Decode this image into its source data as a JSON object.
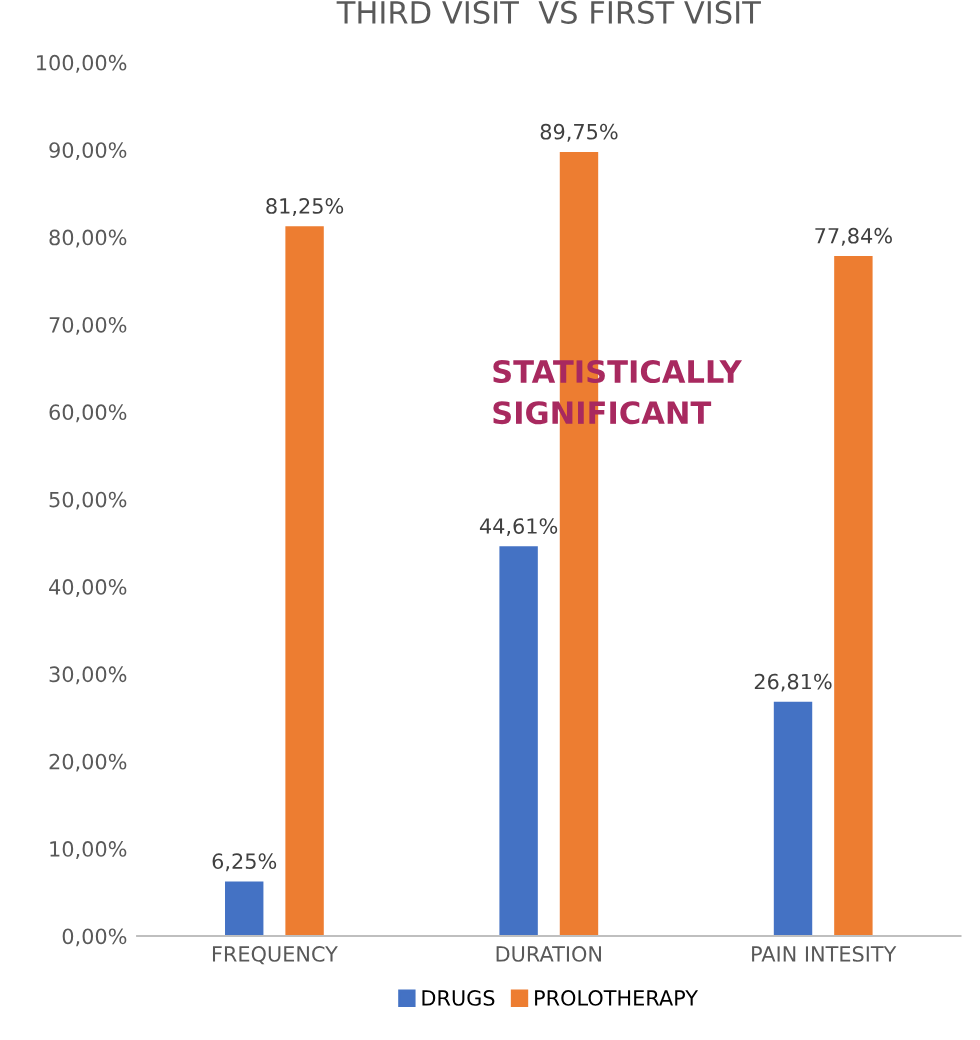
{
  "chart_data": {
    "type": "bar",
    "title": "THIRD VISIT  VS FIRST VISIT",
    "categories": [
      "FREQUENCY",
      "DURATION",
      "PAIN INTESITY"
    ],
    "series": [
      {
        "name": "DRUGS",
        "color": "#4472c4",
        "values": [
          6.25,
          44.61,
          26.81
        ],
        "value_labels": [
          "6,25%",
          "44,61%",
          "26,81%"
        ]
      },
      {
        "name": "PROLOTHERAPY",
        "color": "#ed7d31",
        "values": [
          81.25,
          89.75,
          77.84
        ],
        "value_labels": [
          "81,25%",
          "89,75%",
          "77,84%"
        ]
      }
    ],
    "ylim": [
      0,
      100
    ],
    "yticks": [
      {
        "value": 0,
        "label": "0,00%"
      },
      {
        "value": 10,
        "label": "10,00%"
      },
      {
        "value": 20,
        "label": "20,00%"
      },
      {
        "value": 30,
        "label": "30,00%"
      },
      {
        "value": 40,
        "label": "40,00%"
      },
      {
        "value": 50,
        "label": "50,00%"
      },
      {
        "value": 60,
        "label": "60,00%"
      },
      {
        "value": 70,
        "label": "70,00%"
      },
      {
        "value": 80,
        "label": "80,00%"
      },
      {
        "value": 90,
        "label": "90,00%"
      },
      {
        "value": 100,
        "label": "100,00%"
      }
    ],
    "annotations": [
      "STATISTICALLY\nSIGNIFICANT"
    ],
    "grid": false,
    "legend": "bottom"
  }
}
